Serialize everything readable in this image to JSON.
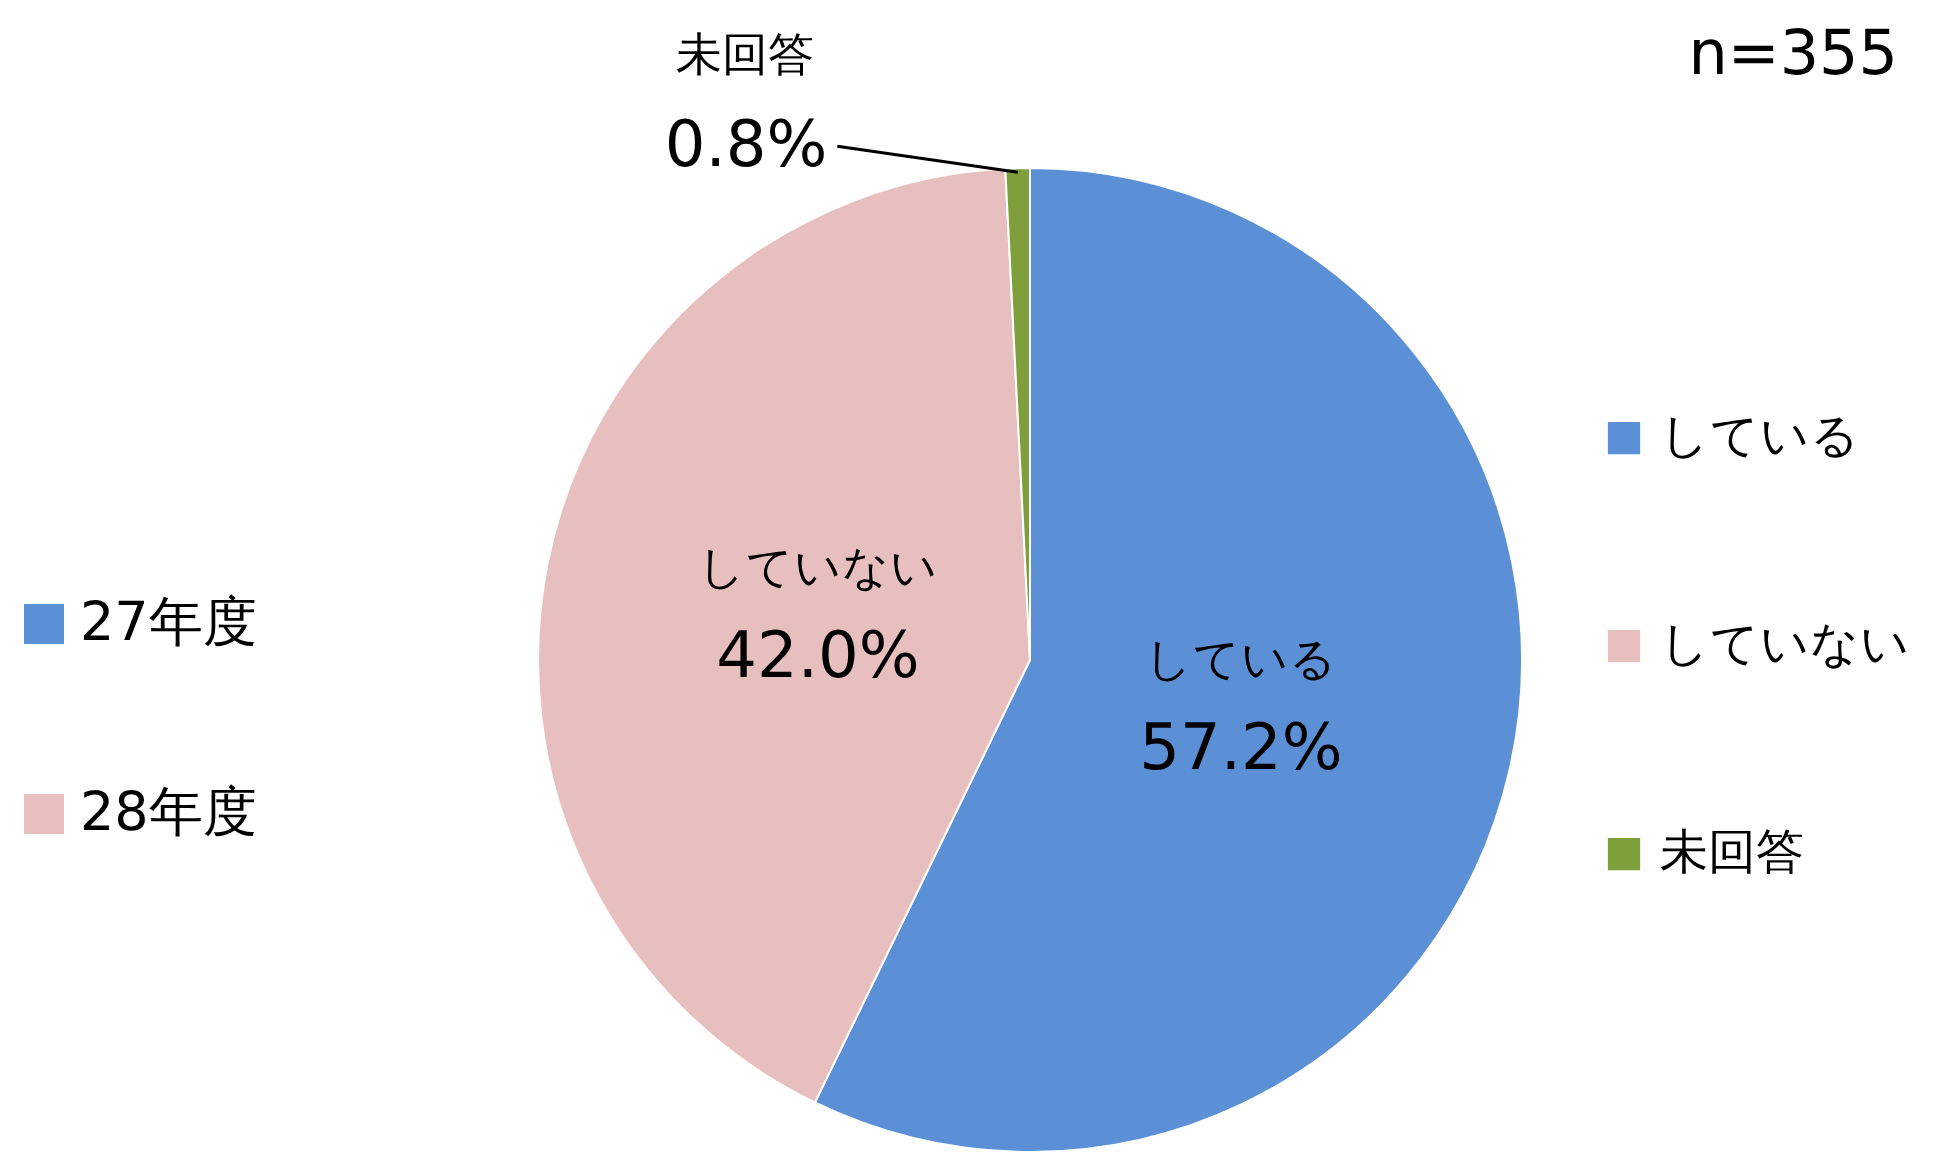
{
  "chart_data": {
    "type": "pie",
    "categories": [
      "している",
      "していない",
      "未回答"
    ],
    "values": [
      57.2,
      42.0,
      0.8
    ],
    "value_labels": [
      "57.2%",
      "42.0%",
      "0.8%"
    ],
    "colors": [
      "#5b8fd6",
      "#e8bfbf",
      "#7f9f3c"
    ],
    "legend": "right",
    "annotations": [
      "n=355",
      "27年度",
      "28年度"
    ]
  }
}
